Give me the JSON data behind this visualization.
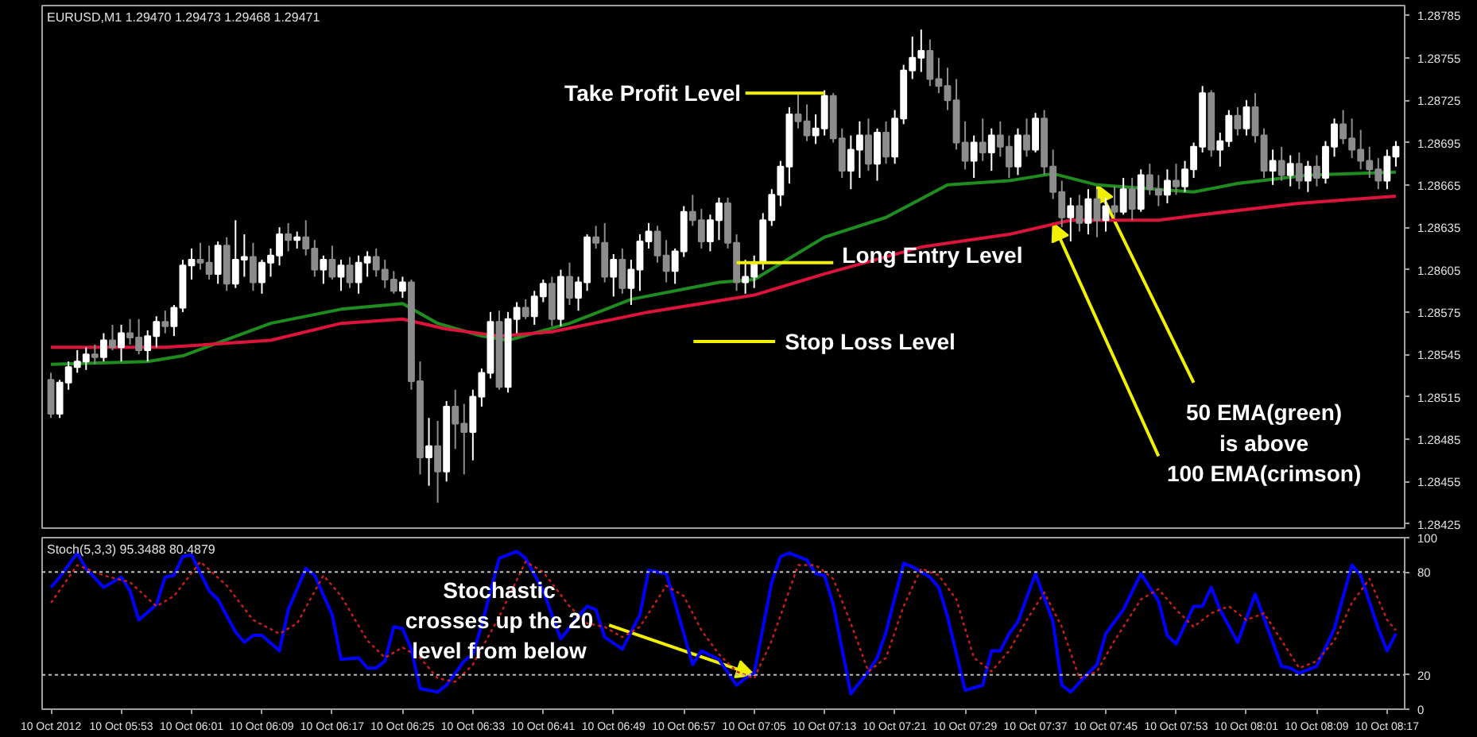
{
  "chart_data": [
    {
      "type": "candlestick",
      "title": "EURUSD,M1 1.29470 1.29473 1.29468 1.29471",
      "x": [
        "2012-10-10T05:45",
        "2012-10-10T05:46",
        "2012-10-10T05:47",
        "2012-10-10T05:48",
        "2012-10-10T05:49",
        "2012-10-10T05:50",
        "2012-10-10T05:51",
        "2012-10-10T05:52",
        "2012-10-10T05:53",
        "2012-10-10T05:54",
        "2012-10-10T05:55",
        "2012-10-10T05:56",
        "2012-10-10T05:57",
        "2012-10-10T05:58",
        "2012-10-10T05:59",
        "2012-10-10T06:00",
        "2012-10-10T06:01",
        "2012-10-10T06:02",
        "2012-10-10T06:03",
        "2012-10-10T06:04",
        "2012-10-10T06:05",
        "2012-10-10T06:06",
        "2012-10-10T06:07",
        "2012-10-10T06:08",
        "2012-10-10T06:09",
        "2012-10-10T06:10",
        "2012-10-10T06:11",
        "2012-10-10T06:12",
        "2012-10-10T06:13",
        "2012-10-10T06:14",
        "2012-10-10T06:15",
        "2012-10-10T06:16",
        "2012-10-10T06:17",
        "2012-10-10T06:18",
        "2012-10-10T06:19",
        "2012-10-10T06:20",
        "2012-10-10T06:21",
        "2012-10-10T06:22",
        "2012-10-10T06:23",
        "2012-10-10T06:24",
        "2012-10-10T06:25",
        "2012-10-10T06:26",
        "2012-10-10T06:27",
        "2012-10-10T06:28",
        "2012-10-10T06:29",
        "2012-10-10T06:30",
        "2012-10-10T06:31",
        "2012-10-10T06:32",
        "2012-10-10T06:33",
        "2012-10-10T06:34",
        "2012-10-10T06:35",
        "2012-10-10T06:36",
        "2012-10-10T06:37",
        "2012-10-10T06:38",
        "2012-10-10T06:39",
        "2012-10-10T06:40",
        "2012-10-10T06:41",
        "2012-10-10T06:42",
        "2012-10-10T06:43",
        "2012-10-10T06:44",
        "2012-10-10T06:45",
        "2012-10-10T06:46",
        "2012-10-10T06:47",
        "2012-10-10T06:48",
        "2012-10-10T06:49",
        "2012-10-10T06:50",
        "2012-10-10T06:51",
        "2012-10-10T06:52",
        "2012-10-10T06:53",
        "2012-10-10T06:54",
        "2012-10-10T06:55",
        "2012-10-10T06:56",
        "2012-10-10T06:57",
        "2012-10-10T06:58",
        "2012-10-10T06:59",
        "2012-10-10T07:00",
        "2012-10-10T07:01",
        "2012-10-10T07:02",
        "2012-10-10T07:03",
        "2012-10-10T07:04",
        "2012-10-10T07:05",
        "2012-10-10T07:06",
        "2012-10-10T07:07",
        "2012-10-10T07:08",
        "2012-10-10T07:09",
        "2012-10-10T07:10",
        "2012-10-10T07:11",
        "2012-10-10T07:12",
        "2012-10-10T07:13",
        "2012-10-10T07:14",
        "2012-10-10T07:15",
        "2012-10-10T07:16",
        "2012-10-10T07:17",
        "2012-10-10T07:18",
        "2012-10-10T07:19",
        "2012-10-10T07:20",
        "2012-10-10T07:21",
        "2012-10-10T07:22",
        "2012-10-10T07:23",
        "2012-10-10T07:24",
        "2012-10-10T07:25",
        "2012-10-10T07:26",
        "2012-10-10T07:27",
        "2012-10-10T07:28",
        "2012-10-10T07:29",
        "2012-10-10T07:30",
        "2012-10-10T07:31",
        "2012-10-10T07:32",
        "2012-10-10T07:33",
        "2012-10-10T07:34",
        "2012-10-10T07:35",
        "2012-10-10T07:36",
        "2012-10-10T07:37",
        "2012-10-10T07:38",
        "2012-10-10T07:39",
        "2012-10-10T07:40",
        "2012-10-10T07:41",
        "2012-10-10T07:42",
        "2012-10-10T07:43",
        "2012-10-10T07:44",
        "2012-10-10T07:45",
        "2012-10-10T07:46",
        "2012-10-10T07:47",
        "2012-10-10T07:48",
        "2012-10-10T07:49",
        "2012-10-10T07:50",
        "2012-10-10T07:51",
        "2012-10-10T07:52",
        "2012-10-10T07:53",
        "2012-10-10T07:54",
        "2012-10-10T07:55",
        "2012-10-10T07:56",
        "2012-10-10T07:57",
        "2012-10-10T07:58",
        "2012-10-10T07:59",
        "2012-10-10T08:00",
        "2012-10-10T08:01",
        "2012-10-10T08:02",
        "2012-10-10T08:03",
        "2012-10-10T08:04",
        "2012-10-10T08:05",
        "2012-10-10T08:06",
        "2012-10-10T08:07",
        "2012-10-10T08:08",
        "2012-10-10T08:09",
        "2012-10-10T08:10",
        "2012-10-10T08:11",
        "2012-10-10T08:12",
        "2012-10-10T08:13",
        "2012-10-10T08:14",
        "2012-10-10T08:15",
        "2012-10-10T08:16",
        "2012-10-10T08:17",
        "2012-10-10T08:18"
      ],
      "ohlc": [
        [
          1.28527,
          1.28532,
          1.285,
          1.28503
        ],
        [
          1.28503,
          1.28527,
          1.285,
          1.28525
        ],
        [
          1.28525,
          1.2854,
          1.2852,
          1.28536
        ],
        [
          1.28536,
          1.28548,
          1.28532,
          1.2854
        ],
        [
          1.2854,
          1.2855,
          1.28534,
          1.28545
        ],
        [
          1.28545,
          1.28552,
          1.28538,
          1.28543
        ],
        [
          1.28543,
          1.2856,
          1.2854,
          1.28555
        ],
        [
          1.28555,
          1.28566,
          1.28548,
          1.2855
        ],
        [
          1.2855,
          1.28566,
          1.2854,
          1.2856
        ],
        [
          1.2856,
          1.2857,
          1.28552,
          1.28557
        ],
        [
          1.28557,
          1.2857,
          1.28545,
          1.28548
        ],
        [
          1.28548,
          1.28562,
          1.2854,
          1.28558
        ],
        [
          1.28558,
          1.28572,
          1.2855,
          1.28568
        ],
        [
          1.28568,
          1.28576,
          1.2856,
          1.28565
        ],
        [
          1.28565,
          1.2858,
          1.28558,
          1.28578
        ],
        [
          1.28578,
          1.28612,
          1.28575,
          1.28608
        ],
        [
          1.28608,
          1.2862,
          1.28598,
          1.28612
        ],
        [
          1.28612,
          1.28624,
          1.28605,
          1.2861
        ],
        [
          1.2861,
          1.28622,
          1.28598,
          1.28602
        ],
        [
          1.28602,
          1.28625,
          1.28595,
          1.28622
        ],
        [
          1.28622,
          1.28628,
          1.2859,
          1.28595
        ],
        [
          1.28595,
          1.2864,
          1.28592,
          1.28612
        ],
        [
          1.28612,
          1.2863,
          1.286,
          1.28614
        ],
        [
          1.28614,
          1.28624,
          1.2859,
          1.28596
        ],
        [
          1.28596,
          1.28612,
          1.28588,
          1.2861
        ],
        [
          1.2861,
          1.2862,
          1.286,
          1.28615
        ],
        [
          1.28615,
          1.28635,
          1.28608,
          1.2863
        ],
        [
          1.2863,
          1.28638,
          1.28618,
          1.28626
        ],
        [
          1.28626,
          1.28632,
          1.2862,
          1.28628
        ],
        [
          1.28628,
          1.2864,
          1.28615,
          1.2862
        ],
        [
          1.2862,
          1.28626,
          1.286,
          1.28605
        ],
        [
          1.28605,
          1.28615,
          1.28595,
          1.28612
        ],
        [
          1.28612,
          1.28622,
          1.28598,
          1.286
        ],
        [
          1.286,
          1.28612,
          1.2859,
          1.28608
        ],
        [
          1.28608,
          1.28614,
          1.28592,
          1.28596
        ],
        [
          1.28596,
          1.28615,
          1.28588,
          1.2861
        ],
        [
          1.2861,
          1.28618,
          1.286,
          1.28614
        ],
        [
          1.28614,
          1.2862,
          1.286,
          1.28605
        ],
        [
          1.28605,
          1.28612,
          1.28592,
          1.28598
        ],
        [
          1.28598,
          1.28604,
          1.28588,
          1.2859
        ],
        [
          1.2859,
          1.286,
          1.28585,
          1.28596
        ],
        [
          1.28596,
          1.28598,
          1.2852,
          1.28526
        ],
        [
          1.28526,
          1.2854,
          1.2846,
          1.28472
        ],
        [
          1.28472,
          1.285,
          1.28452,
          1.2848
        ],
        [
          1.2848,
          1.28498,
          1.2844,
          1.28462
        ],
        [
          1.28462,
          1.28512,
          1.28455,
          1.28508
        ],
        [
          1.28508,
          1.2852,
          1.28478,
          1.28496
        ],
        [
          1.28496,
          1.2851,
          1.2846,
          1.2849
        ],
        [
          1.2849,
          1.2852,
          1.2847,
          1.28515
        ],
        [
          1.28515,
          1.28535,
          1.28508,
          1.28532
        ],
        [
          1.28532,
          1.28575,
          1.28528,
          1.28568
        ],
        [
          1.28568,
          1.28576,
          1.2852,
          1.28522
        ],
        [
          1.28522,
          1.28575,
          1.28518,
          1.2857
        ],
        [
          1.2857,
          1.28582,
          1.2856,
          1.28578
        ],
        [
          1.28578,
          1.28584,
          1.2857,
          1.28572
        ],
        [
          1.28572,
          1.2859,
          1.28566,
          1.28586
        ],
        [
          1.28586,
          1.28598,
          1.28582,
          1.28595
        ],
        [
          1.28595,
          1.286,
          1.28565,
          1.2857
        ],
        [
          1.2857,
          1.28605,
          1.28565,
          1.286
        ],
        [
          1.286,
          1.2861,
          1.2858,
          1.28585
        ],
        [
          1.28585,
          1.286,
          1.28576,
          1.28596
        ],
        [
          1.28596,
          1.2863,
          1.2859,
          1.28628
        ],
        [
          1.28628,
          1.28636,
          1.2862,
          1.28624
        ],
        [
          1.28624,
          1.28638,
          1.28596,
          1.286
        ],
        [
          1.286,
          1.28616,
          1.28586,
          1.28612
        ],
        [
          1.28612,
          1.2862,
          1.28588,
          1.28592
        ],
        [
          1.28592,
          1.28612,
          1.2858,
          1.28605
        ],
        [
          1.28605,
          1.2863,
          1.2859,
          1.28625
        ],
        [
          1.28625,
          1.28638,
          1.2862,
          1.28632
        ],
        [
          1.28632,
          1.28636,
          1.2861,
          1.28615
        ],
        [
          1.28615,
          1.28626,
          1.28596,
          1.28604
        ],
        [
          1.28604,
          1.2862,
          1.28595,
          1.28618
        ],
        [
          1.28618,
          1.2865,
          1.28614,
          1.28646
        ],
        [
          1.28646,
          1.28658,
          1.28636,
          1.2864
        ],
        [
          1.2864,
          1.28648,
          1.2862,
          1.28625
        ],
        [
          1.28625,
          1.28644,
          1.28618,
          1.2864
        ],
        [
          1.2864,
          1.28656,
          1.28626,
          1.28652
        ],
        [
          1.28652,
          1.28656,
          1.2862,
          1.28624
        ],
        [
          1.28624,
          1.2863,
          1.2859,
          1.28596
        ],
        [
          1.28596,
          1.28612,
          1.28588,
          1.286
        ],
        [
          1.286,
          1.28615,
          1.28592,
          1.2861
        ],
        [
          1.2861,
          1.28645,
          1.28605,
          1.2864
        ],
        [
          1.2864,
          1.28662,
          1.28636,
          1.28658
        ],
        [
          1.28658,
          1.28682,
          1.2865,
          1.28678
        ],
        [
          1.28678,
          1.2872,
          1.28666,
          1.28715
        ],
        [
          1.28715,
          1.2873,
          1.28705,
          1.2871
        ],
        [
          1.2871,
          1.28722,
          1.28696,
          1.287
        ],
        [
          1.287,
          1.28715,
          1.28694,
          1.28705
        ],
        [
          1.28705,
          1.28732,
          1.287,
          1.28728
        ],
        [
          1.28728,
          1.2873,
          1.28695,
          1.28698
        ],
        [
          1.28698,
          1.28705,
          1.2867,
          1.28675
        ],
        [
          1.28675,
          1.287,
          1.28662,
          1.2869
        ],
        [
          1.2869,
          1.2871,
          1.2867,
          1.287
        ],
        [
          1.287,
          1.28712,
          1.28675,
          1.2868
        ],
        [
          1.2868,
          1.28705,
          1.28668,
          1.28702
        ],
        [
          1.28702,
          1.2871,
          1.2868,
          1.28685
        ],
        [
          1.28685,
          1.28718,
          1.2868,
          1.28712
        ],
        [
          1.28712,
          1.2875,
          1.28708,
          1.28746
        ],
        [
          1.28746,
          1.2877,
          1.2874,
          1.28755
        ],
        [
          1.28755,
          1.28775,
          1.28745,
          1.2876
        ],
        [
          1.2876,
          1.28768,
          1.28735,
          1.2874
        ],
        [
          1.2874,
          1.28755,
          1.2873,
          1.28735
        ],
        [
          1.28735,
          1.28748,
          1.28718,
          1.28725
        ],
        [
          1.28725,
          1.2874,
          1.2869,
          1.28695
        ],
        [
          1.28695,
          1.2871,
          1.28676,
          1.28682
        ],
        [
          1.28682,
          1.287,
          1.2867,
          1.28695
        ],
        [
          1.28695,
          1.28712,
          1.28682,
          1.28688
        ],
        [
          1.28688,
          1.28705,
          1.28675,
          1.287
        ],
        [
          1.287,
          1.2871,
          1.28685,
          1.28692
        ],
        [
          1.28692,
          1.287,
          1.2867,
          1.28678
        ],
        [
          1.28678,
          1.28705,
          1.28672,
          1.287
        ],
        [
          1.287,
          1.28712,
          1.28685,
          1.2869
        ],
        [
          1.2869,
          1.28716,
          1.28688,
          1.28712
        ],
        [
          1.28712,
          1.28718,
          1.28672,
          1.28678
        ],
        [
          1.28678,
          1.2869,
          1.28655,
          1.2866
        ],
        [
          1.2866,
          1.28668,
          1.28635,
          1.28642
        ],
        [
          1.28642,
          1.28656,
          1.28625,
          1.2865
        ],
        [
          1.2865,
          1.28658,
          1.28632,
          1.28638
        ],
        [
          1.28638,
          1.28662,
          1.2863,
          1.28655
        ],
        [
          1.28655,
          1.28662,
          1.28628,
          1.2864
        ],
        [
          1.2864,
          1.28656,
          1.28632,
          1.2865
        ],
        [
          1.2865,
          1.28664,
          1.28642,
          1.28646
        ],
        [
          1.28646,
          1.2867,
          1.28644,
          1.28662
        ],
        [
          1.28662,
          1.2867,
          1.2864,
          1.28648
        ],
        [
          1.28648,
          1.28676,
          1.28646,
          1.28672
        ],
        [
          1.28672,
          1.2868,
          1.28658,
          1.28662
        ],
        [
          1.28662,
          1.28672,
          1.2865,
          1.28658
        ],
        [
          1.28658,
          1.28676,
          1.28652,
          1.28668
        ],
        [
          1.28668,
          1.2868,
          1.28658,
          1.28664
        ],
        [
          1.28664,
          1.28682,
          1.2866,
          1.28676
        ],
        [
          1.28676,
          1.28695,
          1.2867,
          1.28692
        ],
        [
          1.28692,
          1.28735,
          1.28688,
          1.2873
        ],
        [
          1.2873,
          1.28732,
          1.28685,
          1.2869
        ],
        [
          1.2869,
          1.28702,
          1.28678,
          1.28696
        ],
        [
          1.28696,
          1.28718,
          1.28692,
          1.28714
        ],
        [
          1.28714,
          1.2872,
          1.287,
          1.28705
        ],
        [
          1.28705,
          1.28725,
          1.287,
          1.2872
        ],
        [
          1.2872,
          1.2873,
          1.28695,
          1.287
        ],
        [
          1.287,
          1.28705,
          1.2867,
          1.28675
        ],
        [
          1.28675,
          1.2869,
          1.28665,
          1.28682
        ],
        [
          1.28682,
          1.28692,
          1.28668,
          1.28672
        ],
        [
          1.28672,
          1.28686,
          1.28664,
          1.2868
        ],
        [
          1.2868,
          1.28688,
          1.28662,
          1.28668
        ],
        [
          1.28668,
          1.28682,
          1.2866,
          1.28678
        ],
        [
          1.28678,
          1.28686,
          1.28664,
          1.2867
        ],
        [
          1.2867,
          1.28696,
          1.28666,
          1.28692
        ],
        [
          1.28692,
          1.28712,
          1.28685,
          1.28708
        ],
        [
          1.28708,
          1.28718,
          1.28694,
          1.28698
        ],
        [
          1.28698,
          1.28712,
          1.28684,
          1.2869
        ],
        [
          1.2869,
          1.28704,
          1.28676,
          1.28682
        ],
        [
          1.28682,
          1.28692,
          1.2867,
          1.28676
        ],
        [
          1.28676,
          1.28684,
          1.28662,
          1.28668
        ],
        [
          1.28668,
          1.2869,
          1.28662,
          1.28685
        ],
        [
          1.28685,
          1.28696,
          1.28678,
          1.28692
        ]
      ],
      "series": [
        {
          "type": "line",
          "color": "#1e8c1e",
          "x": [
            "2012-10-10T05:45",
            "2012-10-10T05:56",
            "2012-10-10T06:00",
            "2012-10-10T06:10",
            "2012-10-10T06:18",
            "2012-10-10T06:25",
            "2012-10-10T06:29",
            "2012-10-10T06:34",
            "2012-10-10T06:37",
            "2012-10-10T06:44",
            "2012-10-10T06:51",
            "2012-10-10T07:01",
            "2012-10-10T07:05",
            "2012-10-10T07:13",
            "2012-10-10T07:20",
            "2012-10-10T07:27",
            "2012-10-10T07:34",
            "2012-10-10T07:39",
            "2012-10-10T07:44",
            "2012-10-10T07:55",
            "2012-10-10T08:00",
            "2012-10-10T08:08",
            "2012-10-10T08:18"
          ],
          "values": [
            1.28538,
            1.2854,
            1.28544,
            1.28567,
            1.28577,
            1.28581,
            1.28567,
            1.28558,
            1.28555,
            1.28567,
            1.28584,
            1.28596,
            1.28598,
            1.28628,
            1.28642,
            1.28665,
            1.28668,
            1.28673,
            1.28665,
            1.2866,
            1.28666,
            1.28672,
            1.28674
          ]
        },
        {
          "type": "line",
          "color": "#dc143c",
          "x": [
            "2012-10-10T05:45",
            "2012-10-10T05:58",
            "2012-10-10T06:10",
            "2012-10-10T06:18",
            "2012-10-10T06:25",
            "2012-10-10T06:30",
            "2012-10-10T06:36",
            "2012-10-10T06:42",
            "2012-10-10T06:53",
            "2012-10-10T07:05",
            "2012-10-10T07:13",
            "2012-10-10T07:24",
            "2012-10-10T07:34",
            "2012-10-10T07:41",
            "2012-10-10T07:51",
            "2012-10-10T07:56",
            "2012-10-10T08:07",
            "2012-10-10T08:18"
          ],
          "values": [
            1.2855,
            1.2855,
            1.28555,
            1.28567,
            1.2857,
            1.28563,
            1.28558,
            1.28561,
            1.28575,
            1.28587,
            1.28602,
            1.28621,
            1.2863,
            1.2864,
            1.2864,
            1.28644,
            1.28652,
            1.28657
          ]
        }
      ],
      "xlim": [
        "2012-10-10T05:44",
        "2012-10-10T08:19"
      ],
      "ylim": [
        1.28422,
        1.28792
      ],
      "yticks": [
        1.28425,
        1.28455,
        1.28485,
        1.28515,
        1.28545,
        1.28575,
        1.28605,
        1.28635,
        1.28665,
        1.28695,
        1.28725,
        1.28755,
        1.28785
      ],
      "tick_labels": "y",
      "annotations": [
        {
          "text": "Take Profit Level",
          "x": "2012-10-10T07:13",
          "y": 1.2873
        },
        {
          "text": "Long Entry Level",
          "x": "2012-10-10T07:03",
          "y": 1.2861
        },
        "Stop Loss Level",
        {
          "text": "50 EMA(green)\nis above\n100 EMA(crimson)",
          "x": "2012-10-10T07:39",
          "y": 1.28638
        }
      ]
    },
    {
      "type": "line",
      "title": "Stoch(5,3,3) 95.3488 80.4879",
      "series": [
        {
          "color": "#0000ff",
          "line_style": "solid",
          "x": [
            "2012-10-10T05:45",
            "2012-10-10T05:46",
            "2012-10-10T05:48",
            "2012-10-10T05:49",
            "2012-10-10T05:51",
            "2012-10-10T05:53",
            "2012-10-10T05:54",
            "2012-10-10T05:55",
            "2012-10-10T05:57",
            "2012-10-10T05:58",
            "2012-10-10T05:59",
            "2012-10-10T06:00",
            "2012-10-10T06:01",
            "2012-10-10T06:03",
            "2012-10-10T06:04",
            "2012-10-10T06:06",
            "2012-10-10T06:07",
            "2012-10-10T06:08",
            "2012-10-10T06:09",
            "2012-10-10T06:11",
            "2012-10-10T06:12",
            "2012-10-10T06:14",
            "2012-10-10T06:15",
            "2012-10-10T06:17",
            "2012-10-10T06:18",
            "2012-10-10T06:20",
            "2012-10-10T06:21",
            "2012-10-10T06:22",
            "2012-10-10T06:23",
            "2012-10-10T06:24",
            "2012-10-10T06:25",
            "2012-10-10T06:26",
            "2012-10-10T06:27",
            "2012-10-10T06:29",
            "2012-10-10T06:30",
            "2012-10-10T06:32",
            "2012-10-10T06:33",
            "2012-10-10T06:34",
            "2012-10-10T06:36",
            "2012-10-10T06:38",
            "2012-10-10T06:39",
            "2012-10-10T06:41",
            "2012-10-10T06:42",
            "2012-10-10T06:43",
            "2012-10-10T06:45",
            "2012-10-10T06:46",
            "2012-10-10T06:47",
            "2012-10-10T06:48",
            "2012-10-10T06:50",
            "2012-10-10T06:52",
            "2012-10-10T06:53",
            "2012-10-10T06:55",
            "2012-10-10T06:56",
            "2012-10-10T06:57",
            "2012-10-10T06:58",
            "2012-10-10T06:59",
            "2012-10-10T07:01",
            "2012-10-10T07:03",
            "2012-10-10T07:04",
            "2012-10-10T07:05",
            "2012-10-10T07:07",
            "2012-10-10T07:08",
            "2012-10-10T07:09",
            "2012-10-10T07:11",
            "2012-10-10T07:12",
            "2012-10-10T07:13",
            "2012-10-10T07:14",
            "2012-10-10T07:16",
            "2012-10-10T07:18",
            "2012-10-10T07:19",
            "2012-10-10T07:20",
            "2012-10-10T07:22",
            "2012-10-10T07:23",
            "2012-10-10T07:25",
            "2012-10-10T07:26",
            "2012-10-10T07:27",
            "2012-10-10T07:29",
            "2012-10-10T07:31",
            "2012-10-10T07:32",
            "2012-10-10T07:33",
            "2012-10-10T07:34",
            "2012-10-10T07:35",
            "2012-10-10T07:37",
            "2012-10-10T07:39",
            "2012-10-10T07:40",
            "2012-10-10T07:41",
            "2012-10-10T07:43",
            "2012-10-10T07:44",
            "2012-10-10T07:45",
            "2012-10-10T07:47",
            "2012-10-10T07:49",
            "2012-10-10T07:51",
            "2012-10-10T07:52",
            "2012-10-10T07:53",
            "2012-10-10T07:55",
            "2012-10-10T07:56",
            "2012-10-10T07:57",
            "2012-10-10T07:58",
            "2012-10-10T08:00",
            "2012-10-10T08:02",
            "2012-10-10T08:05",
            "2012-10-10T08:06",
            "2012-10-10T08:07",
            "2012-10-10T08:09",
            "2012-10-10T08:11",
            "2012-10-10T08:13",
            "2012-10-10T08:14",
            "2012-10-10T08:16",
            "2012-10-10T08:17",
            "2012-10-10T08:18"
          ],
          "values": [
            71,
            77,
            91,
            82,
            71,
            77,
            69,
            52,
            61,
            77,
            78,
            89,
            90,
            69,
            64,
            45,
            39,
            43,
            43,
            34,
            58,
            82,
            78,
            55,
            29,
            30,
            24,
            24,
            28,
            48,
            47,
            35,
            12,
            10,
            14,
            28,
            32,
            49,
            88,
            92,
            88,
            69,
            55,
            41,
            54,
            60,
            58,
            42,
            35,
            55,
            81,
            79,
            62,
            44,
            26,
            34,
            29,
            14,
            18,
            21,
            74,
            89,
            91,
            87,
            79,
            78,
            61,
            9,
            22,
            30,
            45,
            85,
            83,
            77,
            71,
            54,
            11,
            14,
            34,
            34,
            44,
            51,
            79,
            51,
            14,
            10,
            21,
            26,
            44,
            58,
            79,
            63,
            43,
            38,
            60,
            60,
            71,
            58,
            39,
            67,
            25,
            24,
            21,
            25,
            47,
            84,
            78,
            47,
            34,
            44
          ]
        },
        {
          "color": "#c81e1e",
          "line_style": "dotted",
          "x": [
            "2012-10-10T05:45",
            "2012-10-10T05:48",
            "2012-10-10T05:51",
            "2012-10-10T05:54",
            "2012-10-10T05:57",
            "2012-10-10T05:59",
            "2012-10-10T06:02",
            "2012-10-10T06:05",
            "2012-10-10T06:08",
            "2012-10-10T06:11",
            "2012-10-10T06:13",
            "2012-10-10T06:16",
            "2012-10-10T06:18",
            "2012-10-10T06:21",
            "2012-10-10T06:23",
            "2012-10-10T06:25",
            "2012-10-10T06:27",
            "2012-10-10T06:29",
            "2012-10-10T06:31",
            "2012-10-10T06:33",
            "2012-10-10T06:36",
            "2012-10-10T06:39",
            "2012-10-10T06:41",
            "2012-10-10T06:44",
            "2012-10-10T06:46",
            "2012-10-10T06:48",
            "2012-10-10T06:50",
            "2012-10-10T06:52",
            "2012-10-10T06:55",
            "2012-10-10T06:57",
            "2012-10-10T06:59",
            "2012-10-10T07:01",
            "2012-10-10T07:03",
            "2012-10-10T07:05",
            "2012-10-10T07:07",
            "2012-10-10T07:10",
            "2012-10-10T07:12",
            "2012-10-10T07:14",
            "2012-10-10T07:16",
            "2012-10-10T07:18",
            "2012-10-10T07:20",
            "2012-10-10T07:22",
            "2012-10-10T07:24",
            "2012-10-10T07:26",
            "2012-10-10T07:28",
            "2012-10-10T07:30",
            "2012-10-10T07:32",
            "2012-10-10T07:34",
            "2012-10-10T07:36",
            "2012-10-10T07:38",
            "2012-10-10T07:40",
            "2012-10-10T07:42",
            "2012-10-10T07:44",
            "2012-10-10T07:46",
            "2012-10-10T07:49",
            "2012-10-10T07:51",
            "2012-10-10T07:53",
            "2012-10-10T07:55",
            "2012-10-10T07:57",
            "2012-10-10T07:59",
            "2012-10-10T08:01",
            "2012-10-10T08:03",
            "2012-10-10T08:05",
            "2012-10-10T08:07",
            "2012-10-10T08:09",
            "2012-10-10T08:11",
            "2012-10-10T08:13",
            "2012-10-10T08:15",
            "2012-10-10T08:17",
            "2012-10-10T08:18"
          ],
          "values": [
            62,
            84,
            78,
            74,
            60,
            66,
            86,
            72,
            52,
            44,
            50,
            78,
            66,
            40,
            30,
            36,
            30,
            18,
            16,
            26,
            54,
            86,
            80,
            60,
            50,
            48,
            42,
            48,
            72,
            66,
            46,
            32,
            22,
            18,
            40,
            84,
            84,
            76,
            50,
            22,
            30,
            60,
            82,
            78,
            64,
            30,
            22,
            34,
            52,
            68,
            48,
            18,
            22,
            40,
            64,
            70,
            58,
            48,
            56,
            60,
            52,
            56,
            40,
            24,
            28,
            40,
            62,
            76,
            52,
            46
          ]
        }
      ],
      "xlim": [
        "2012-10-10T05:44",
        "2012-10-10T08:19"
      ],
      "ylim": [
        0,
        100
      ],
      "xticks": [
        {
          "value": "2012-10-10T05:45",
          "label": "10 Oct 2012"
        },
        {
          "value": "2012-10-10T05:53",
          "label": "10 Oct 05:53"
        },
        {
          "value": "2012-10-10T06:01",
          "label": "10 Oct 06:01"
        },
        {
          "value": "2012-10-10T06:09",
          "label": "10 Oct 06:09"
        },
        {
          "value": "2012-10-10T06:17",
          "label": "10 Oct 06:17"
        },
        {
          "value": "2012-10-10T06:25",
          "label": "10 Oct 06:25"
        },
        {
          "value": "2012-10-10T06:33",
          "label": "10 Oct 06:33"
        },
        {
          "value": "2012-10-10T06:41",
          "label": "10 Oct 06:41"
        },
        {
          "value": "2012-10-10T06:49",
          "label": "10 Oct 06:49"
        },
        {
          "value": "2012-10-10T06:57",
          "label": "10 Oct 06:57"
        },
        {
          "value": "2012-10-10T07:05",
          "label": "10 Oct 07:05"
        },
        {
          "value": "2012-10-10T07:13",
          "label": "10 Oct 07:13"
        },
        {
          "value": "2012-10-10T07:21",
          "label": "10 Oct 07:21"
        },
        {
          "value": "2012-10-10T07:29",
          "label": "10 Oct 07:29"
        },
        {
          "value": "2012-10-10T07:37",
          "label": "10 Oct 07:37"
        },
        {
          "value": "2012-10-10T07:45",
          "label": "10 Oct 07:45"
        },
        {
          "value": "2012-10-10T07:53",
          "label": "10 Oct 07:53"
        },
        {
          "value": "2012-10-10T08:01",
          "label": "10 Oct 08:01"
        },
        {
          "value": "2012-10-10T08:09",
          "label": "10 Oct 08:09"
        },
        {
          "value": "2012-10-10T08:17",
          "label": "10 Oct 08:17"
        }
      ],
      "yticks": [
        0,
        20,
        80,
        100
      ],
      "ref_lines": [
        {
          "axis": "y",
          "value": 20,
          "color": "#c0c0c0",
          "line_style": "dotted"
        },
        {
          "axis": "y",
          "value": 80,
          "color": "#c0c0c0",
          "line_style": "dotted"
        }
      ],
      "annotations": [
        {
          "text": "Stochastic\ncrosses up the 20\nlevel from below",
          "x": "2012-10-10T07:05",
          "y": 20
        }
      ]
    }
  ]
}
